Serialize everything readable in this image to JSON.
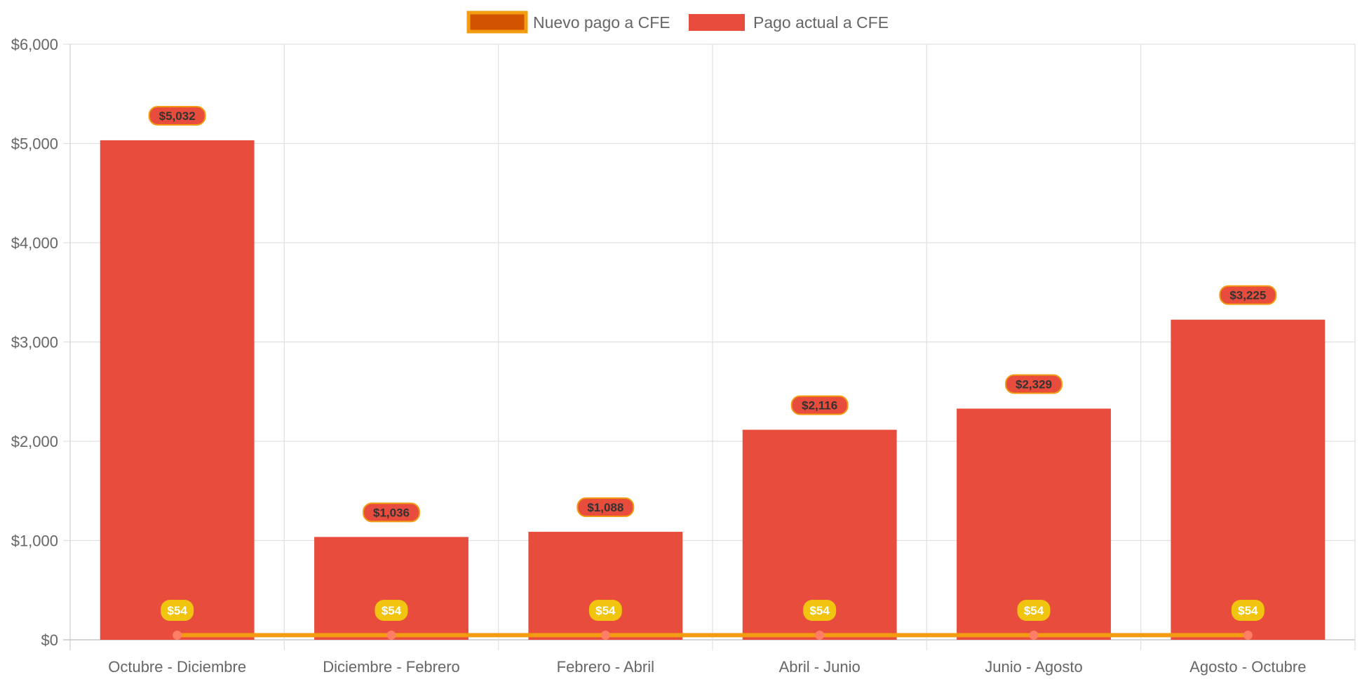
{
  "chart_data": {
    "type": "bar",
    "title": "",
    "xlabel": "",
    "ylabel": "",
    "ylim": [
      0,
      6000
    ],
    "ytick_step": 1000,
    "y_tick_labels": [
      "$0",
      "$1,000",
      "$2,000",
      "$3,000",
      "$4,000",
      "$5,000",
      "$6,000"
    ],
    "grid": true,
    "legend_position": "top-center",
    "categories": [
      "Octubre - Diciembre",
      "Diciembre - Febrero",
      "Febrero - Abril",
      "Abril - Junio",
      "Junio - Agosto",
      "Agosto - Octubre"
    ],
    "series": [
      {
        "name": "Nuevo pago a CFE",
        "type": "line",
        "values": [
          54,
          54,
          54,
          54,
          54,
          54
        ],
        "labels": [
          "$54",
          "$54",
          "$54",
          "$54",
          "$54",
          "$54"
        ],
        "color": "#f39c12",
        "legend_fill": "#d35400",
        "point_color": "#ff7f66",
        "label_bg": "#f1c40f",
        "label_text_color": "#ffffff"
      },
      {
        "name": "Pago actual a CFE",
        "type": "bar",
        "values": [
          5032,
          1036,
          1088,
          2116,
          2329,
          3225
        ],
        "labels": [
          "$5,032",
          "$1,036",
          "$1,088",
          "$2,116",
          "$2,329",
          "$3,225"
        ],
        "color": "#e74c3c",
        "label_border": "#f39c12",
        "label_text_color": "#333333"
      }
    ]
  }
}
